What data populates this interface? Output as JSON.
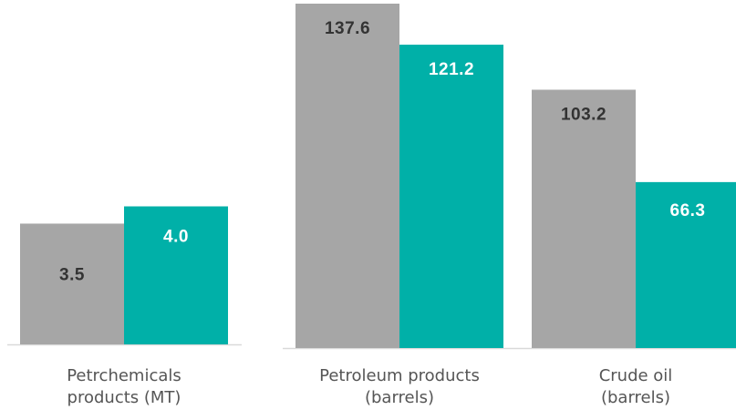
{
  "chart_data": [
    {
      "type": "bar",
      "categories": [
        [
          "Petrchemicals",
          "products (MT)"
        ]
      ],
      "series": [
        {
          "values": [
            3.5
          ],
          "color": "#a6a6a6",
          "label_color": "#333333"
        },
        {
          "values": [
            4.0
          ],
          "color": "#00b0a8",
          "label_color": "#ffffff"
        }
      ],
      "ylim": [
        0,
        4.7
      ]
    },
    {
      "type": "bar",
      "categories": [
        [
          "Petroleum products",
          "(barrels)"
        ],
        [
          "Crude oil",
          "(barrels)"
        ]
      ],
      "series": [
        {
          "values": [
            137.6,
            103.2
          ],
          "color": "#a6a6a6",
          "label_color": "#333333"
        },
        {
          "values": [
            121.2,
            66.3
          ],
          "color": "#00b0a8",
          "label_color": "#ffffff"
        }
      ],
      "ylim": [
        0,
        137.6
      ]
    }
  ],
  "axis_color": "#d9d9d9"
}
